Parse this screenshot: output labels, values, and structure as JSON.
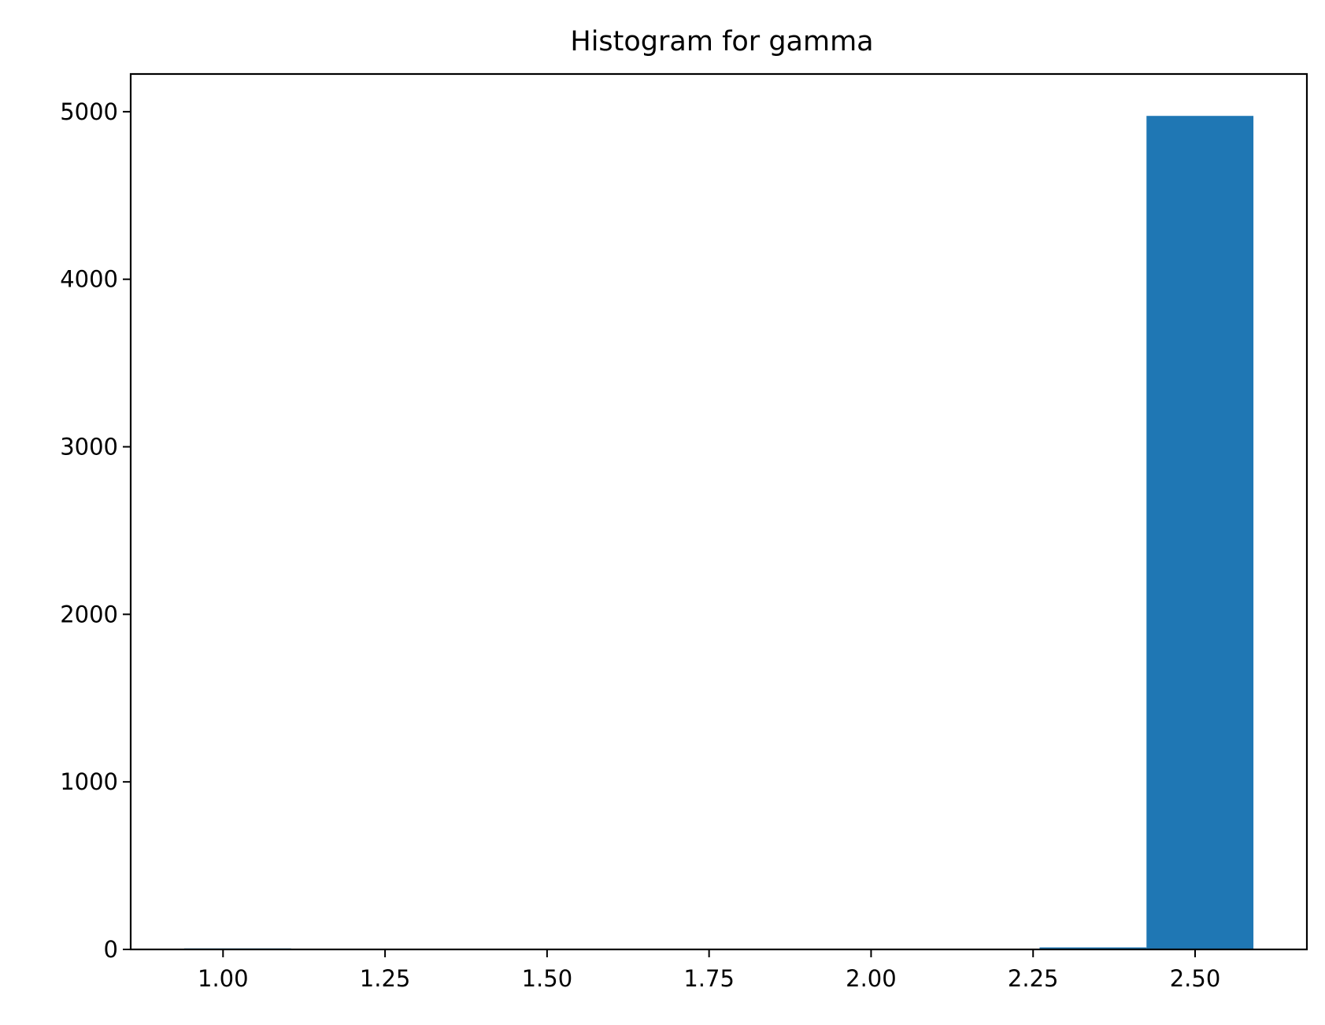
{
  "chart_data": {
    "type": "bar",
    "title": "Histogram for gamma",
    "xlabel": "",
    "ylabel": "",
    "xlim": [
      0.8575,
      2.6725
    ],
    "ylim": [
      0,
      5225
    ],
    "x_ticks": [
      1.0,
      1.25,
      1.5,
      1.75,
      2.0,
      2.25,
      2.5
    ],
    "x_tick_labels": [
      "1.00",
      "1.25",
      "1.50",
      "1.75",
      "2.00",
      "2.25",
      "2.50"
    ],
    "y_ticks": [
      0,
      1000,
      2000,
      3000,
      4000,
      5000
    ],
    "y_tick_labels": [
      "0",
      "1000",
      "2000",
      "3000",
      "4000",
      "5000"
    ],
    "bin_edges": [
      0.94,
      1.105,
      1.27,
      1.435,
      1.6,
      1.765,
      1.93,
      2.095,
      2.26,
      2.425,
      2.59
    ],
    "counts": [
      6,
      0,
      0,
      0,
      0,
      0,
      0,
      0,
      12,
      4975
    ],
    "bar_color": "#1f77b4",
    "grid": false,
    "legend": "none"
  }
}
